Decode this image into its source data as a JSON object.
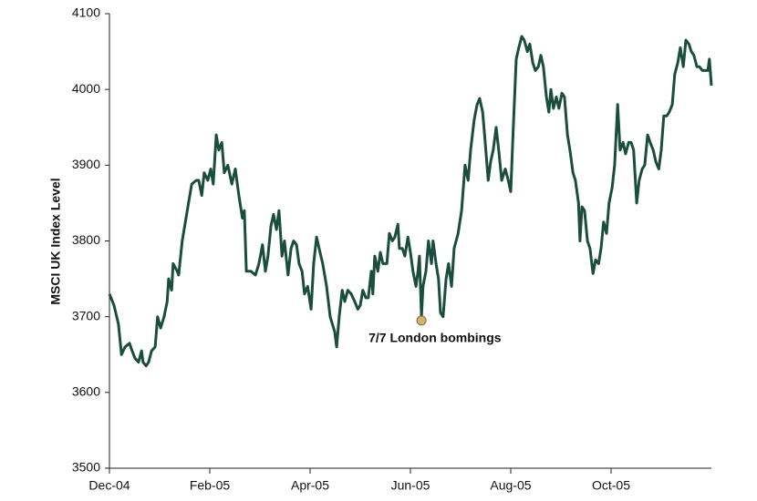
{
  "chart_data": {
    "type": "line",
    "y_label": "MSCI UK Index Level",
    "x": [
      0,
      0.09,
      0.18,
      0.24,
      0.31,
      0.4,
      0.45,
      0.51,
      0.58,
      0.64,
      0.67,
      0.73,
      0.78,
      0.84,
      0.91,
      0.96,
      1.02,
      1.09,
      1.15,
      1.18,
      1.24,
      1.27,
      1.35,
      1.38,
      1.45,
      1.55,
      1.64,
      1.73,
      1.78,
      1.84,
      1.89,
      1.96,
      2.02,
      2.07,
      2.13,
      2.18,
      2.24,
      2.29,
      2.36,
      2.44,
      2.51,
      2.58,
      2.65,
      2.69,
      2.73,
      2.82,
      2.91,
      2.98,
      3.05,
      3.11,
      3.16,
      3.22,
      3.27,
      3.33,
      3.38,
      3.44,
      3.49,
      3.56,
      3.62,
      3.67,
      3.73,
      3.78,
      3.84,
      3.89,
      3.95,
      4.02,
      4.07,
      4.13,
      4.18,
      4.25,
      4.33,
      4.4,
      4.49,
      4.53,
      4.58,
      4.64,
      4.69,
      4.75,
      4.82,
      4.89,
      4.95,
      5,
      5.05,
      5.11,
      5.16,
      5.22,
      5.25,
      5.29,
      5.35,
      5.4,
      5.45,
      5.53,
      5.58,
      5.64,
      5.69,
      5.75,
      5.78,
      5.84,
      5.89,
      5.95,
      6,
      6.05,
      6.11,
      6.15,
      6.18,
      6.22,
      6.25,
      6.31,
      6.36,
      6.42,
      6.45,
      6.51,
      6.56,
      6.6,
      6.65,
      6.71,
      6.76,
      6.82,
      6.87,
      6.95,
      7.02,
      7.09,
      7.15,
      7.2,
      7.27,
      7.33,
      7.38,
      7.44,
      7.49,
      7.55,
      7.6,
      7.65,
      7.71,
      7.76,
      7.82,
      7.89,
      7.95,
      8,
      8.05,
      8.11,
      8.16,
      8.22,
      8.27,
      8.33,
      8.38,
      8.44,
      8.49,
      8.55,
      8.6,
      8.65,
      8.71,
      8.76,
      8.8,
      8.85,
      8.91,
      8.96,
      9.02,
      9.07,
      9.13,
      9.18,
      9.24,
      9.29,
      9.35,
      9.38,
      9.42,
      9.47,
      9.53,
      9.58,
      9.64,
      9.69,
      9.75,
      9.8,
      9.85,
      9.91,
      9.96,
      10.02,
      10.07,
      10.13,
      10.18,
      10.24,
      10.29,
      10.35,
      10.4,
      10.45,
      10.51,
      10.56,
      10.62,
      10.67,
      10.73,
      10.78,
      10.84,
      10.89,
      10.95,
      11,
      11.05,
      11.11,
      11.16,
      11.22,
      11.27,
      11.33,
      11.38,
      11.44,
      11.49,
      11.55,
      11.6,
      11.65,
      11.71,
      11.76,
      11.82,
      11.87,
      11.93,
      11.96,
      12
    ],
    "values": [
      3730,
      3715,
      3690,
      3650,
      3660,
      3665,
      3655,
      3645,
      3640,
      3655,
      3640,
      3635,
      3640,
      3655,
      3660,
      3700,
      3685,
      3700,
      3720,
      3750,
      3735,
      3770,
      3760,
      3755,
      3800,
      3840,
      3875,
      3880,
      3880,
      3860,
      3890,
      3880,
      3895,
      3875,
      3940,
      3920,
      3930,
      3890,
      3900,
      3875,
      3895,
      3860,
      3830,
      3840,
      3760,
      3760,
      3755,
      3770,
      3795,
      3760,
      3780,
      3820,
      3835,
      3815,
      3840,
      3780,
      3800,
      3755,
      3790,
      3800,
      3795,
      3770,
      3760,
      3730,
      3740,
      3710,
      3770,
      3805,
      3790,
      3770,
      3740,
      3700,
      3680,
      3660,
      3700,
      3735,
      3720,
      3735,
      3730,
      3720,
      3710,
      3715,
      3735,
      3725,
      3725,
      3760,
      3730,
      3780,
      3760,
      3785,
      3770,
      3770,
      3810,
      3800,
      3805,
      3822,
      3790,
      3790,
      3780,
      3805,
      3785,
      3760,
      3740,
      3760,
      3780,
      3700,
      3740,
      3760,
      3800,
      3770,
      3800,
      3770,
      3750,
      3705,
      3700,
      3750,
      3770,
      3740,
      3790,
      3810,
      3840,
      3900,
      3880,
      3920,
      3960,
      3980,
      3988,
      3970,
      3930,
      3880,
      3905,
      3920,
      3950,
      3920,
      3880,
      3895,
      3880,
      3865,
      3950,
      4040,
      4055,
      4070,
      4065,
      4050,
      4060,
      4035,
      4025,
      4030,
      4045,
      4030,
      3990,
      3970,
      4000,
      3975,
      3990,
      3975,
      3995,
      3990,
      3940,
      3920,
      3890,
      3880,
      3850,
      3800,
      3845,
      3840,
      3800,
      3790,
      3757,
      3775,
      3770,
      3790,
      3825,
      3810,
      3850,
      3870,
      3900,
      3980,
      3920,
      3930,
      3915,
      3930,
      3930,
      3920,
      3850,
      3880,
      3895,
      3900,
      3940,
      3930,
      3920,
      3905,
      3895,
      3920,
      3965,
      3965,
      3970,
      3980,
      4020,
      4035,
      4055,
      4030,
      4065,
      4060,
      4050,
      4045,
      4030,
      4030,
      4025,
      4025,
      4025,
      4040,
      4005
    ],
    "color": "#1b4d3e",
    "xlim": [
      0,
      12
    ],
    "xticks": [
      {
        "value": 0,
        "label": "Dec-04"
      },
      {
        "value": 2,
        "label": "Feb-05"
      },
      {
        "value": 4,
        "label": "Apr-05"
      },
      {
        "value": 6,
        "label": "Jun-05"
      },
      {
        "value": 8,
        "label": "Aug-05"
      },
      {
        "value": 10,
        "label": "Oct-05"
      }
    ],
    "ylim": [
      3500,
      4100
    ],
    "yticks": [
      3500,
      3600,
      3700,
      3800,
      3900,
      4000,
      4100
    ],
    "grid": false,
    "annotation": {
      "text": "7/7 London bombings",
      "x": 6.22,
      "y": 3695,
      "color": "#d4b46e"
    }
  }
}
